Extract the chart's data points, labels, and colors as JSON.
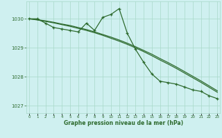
{
  "hours": [
    0,
    1,
    2,
    3,
    4,
    5,
    6,
    7,
    8,
    9,
    10,
    11,
    12,
    13,
    14,
    15,
    16,
    17,
    18,
    19,
    20,
    21,
    22,
    23
  ],
  "pressure_main": [
    1030.0,
    1030.0,
    1029.85,
    1029.7,
    1029.65,
    1029.6,
    1029.55,
    1029.85,
    1029.6,
    1030.05,
    1030.15,
    1030.35,
    1029.5,
    1028.95,
    1028.5,
    1028.1,
    1027.85,
    1027.8,
    1027.75,
    1027.65,
    1027.55,
    1027.5,
    1027.35,
    1027.25
  ],
  "pressure_trend1": [
    1030.0,
    1029.97,
    1029.93,
    1029.88,
    1029.82,
    1029.77,
    1029.7,
    1029.63,
    1029.55,
    1029.46,
    1029.37,
    1029.27,
    1029.16,
    1029.04,
    1028.91,
    1028.78,
    1028.63,
    1028.49,
    1028.34,
    1028.18,
    1028.02,
    1027.86,
    1027.69,
    1027.52
  ],
  "pressure_trend2": [
    1030.0,
    1029.96,
    1029.91,
    1029.86,
    1029.8,
    1029.74,
    1029.67,
    1029.6,
    1029.52,
    1029.43,
    1029.33,
    1029.23,
    1029.12,
    1029.0,
    1028.87,
    1028.73,
    1028.58,
    1028.44,
    1028.29,
    1028.13,
    1027.97,
    1027.81,
    1027.64,
    1027.47
  ],
  "line_color": "#2d6a2d",
  "bg_color": "#cff0f0",
  "grid_color": "#a8d8c8",
  "text_color": "#2d6a2d",
  "ylim_min": 1026.75,
  "ylim_max": 1030.6,
  "yticks": [
    1027,
    1028,
    1029,
    1030
  ],
  "xlim_min": -0.3,
  "xlim_max": 23.3,
  "xlabel": "Graphe pression niveau de la mer (hPa)"
}
